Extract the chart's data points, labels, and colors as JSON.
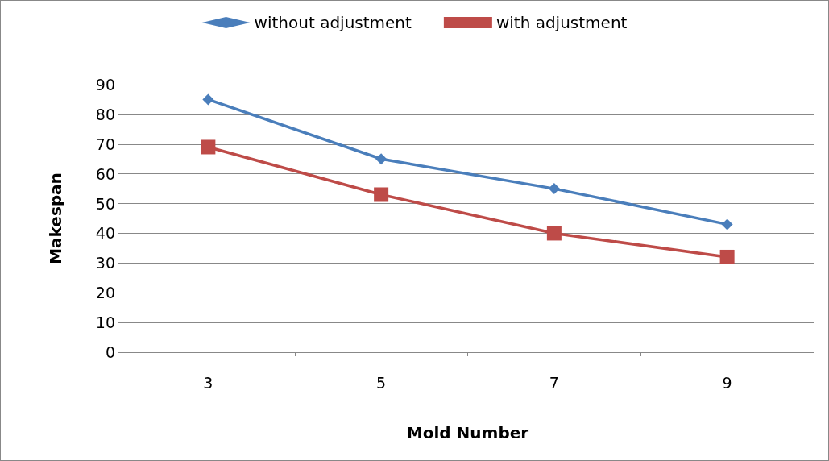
{
  "chart_data": {
    "type": "line",
    "xlabel": "Mold Number",
    "ylabel": "Makespan",
    "categories": [
      "3",
      "5",
      "7",
      "9"
    ],
    "series": [
      {
        "name": "without adjustment",
        "color": "#4a7ebb",
        "marker": "diamond",
        "values": [
          85,
          65,
          55,
          43
        ]
      },
      {
        "name": "with adjustment",
        "color": "#be4b48",
        "marker": "square",
        "values": [
          69,
          53,
          40,
          32
        ]
      }
    ],
    "ylim": [
      0,
      90
    ],
    "yticks": [
      0,
      10,
      20,
      30,
      40,
      50,
      60,
      70,
      80,
      90
    ],
    "grid": "y",
    "legend": "top"
  }
}
